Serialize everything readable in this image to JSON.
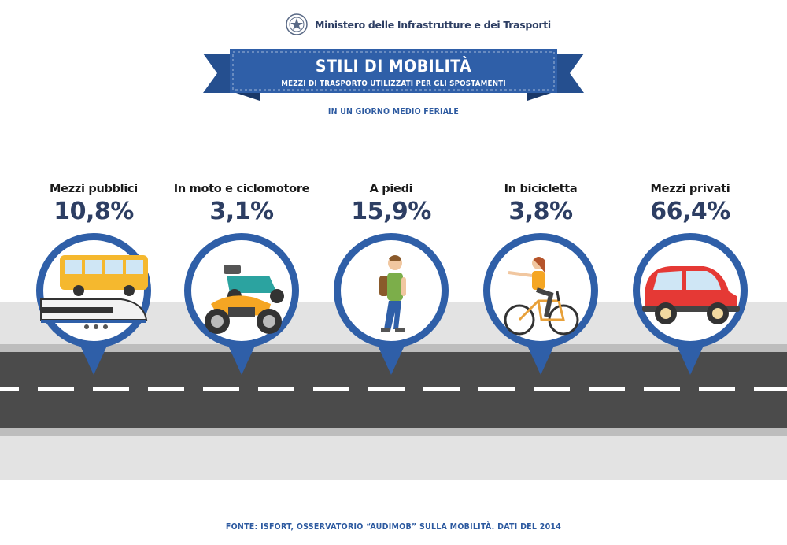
{
  "header": {
    "ministry": "Ministero delle Infrastrutture e dei Trasporti"
  },
  "banner": {
    "title": "STILI DI MOBILITÀ",
    "subtitle": "MEZZI DI TRASPORTO UTILIZZATI PER GLI SPOSTAMENTI",
    "day": "IN UN GIORNO MEDIO FERIALE"
  },
  "categories": [
    {
      "label": "Mezzi pubblici",
      "value": "10,8%",
      "icon": "bus-train-icon"
    },
    {
      "label": "In moto e ciclomotore",
      "value": "3,1%",
      "icon": "motorbike-scooter-icon"
    },
    {
      "label": "A piedi",
      "value": "15,9%",
      "icon": "pedestrian-icon"
    },
    {
      "label": "In bicicletta",
      "value": "3,8%",
      "icon": "bicycle-icon"
    },
    {
      "label": "Mezzi privati",
      "value": "66,4%",
      "icon": "car-icon"
    }
  ],
  "footer": {
    "source": "FONTE: ISFORT, OSSERVATORIO “AUDIMOB” SULLA MOBILITÀ. DATI DEL 2014"
  },
  "colors": {
    "navy": "#2d3e63",
    "accent_blue": "#2f5fa8",
    "road": "#4b4b4b",
    "road_edge": "#bdbdbd",
    "sidewalk": "#e3e3e3"
  }
}
